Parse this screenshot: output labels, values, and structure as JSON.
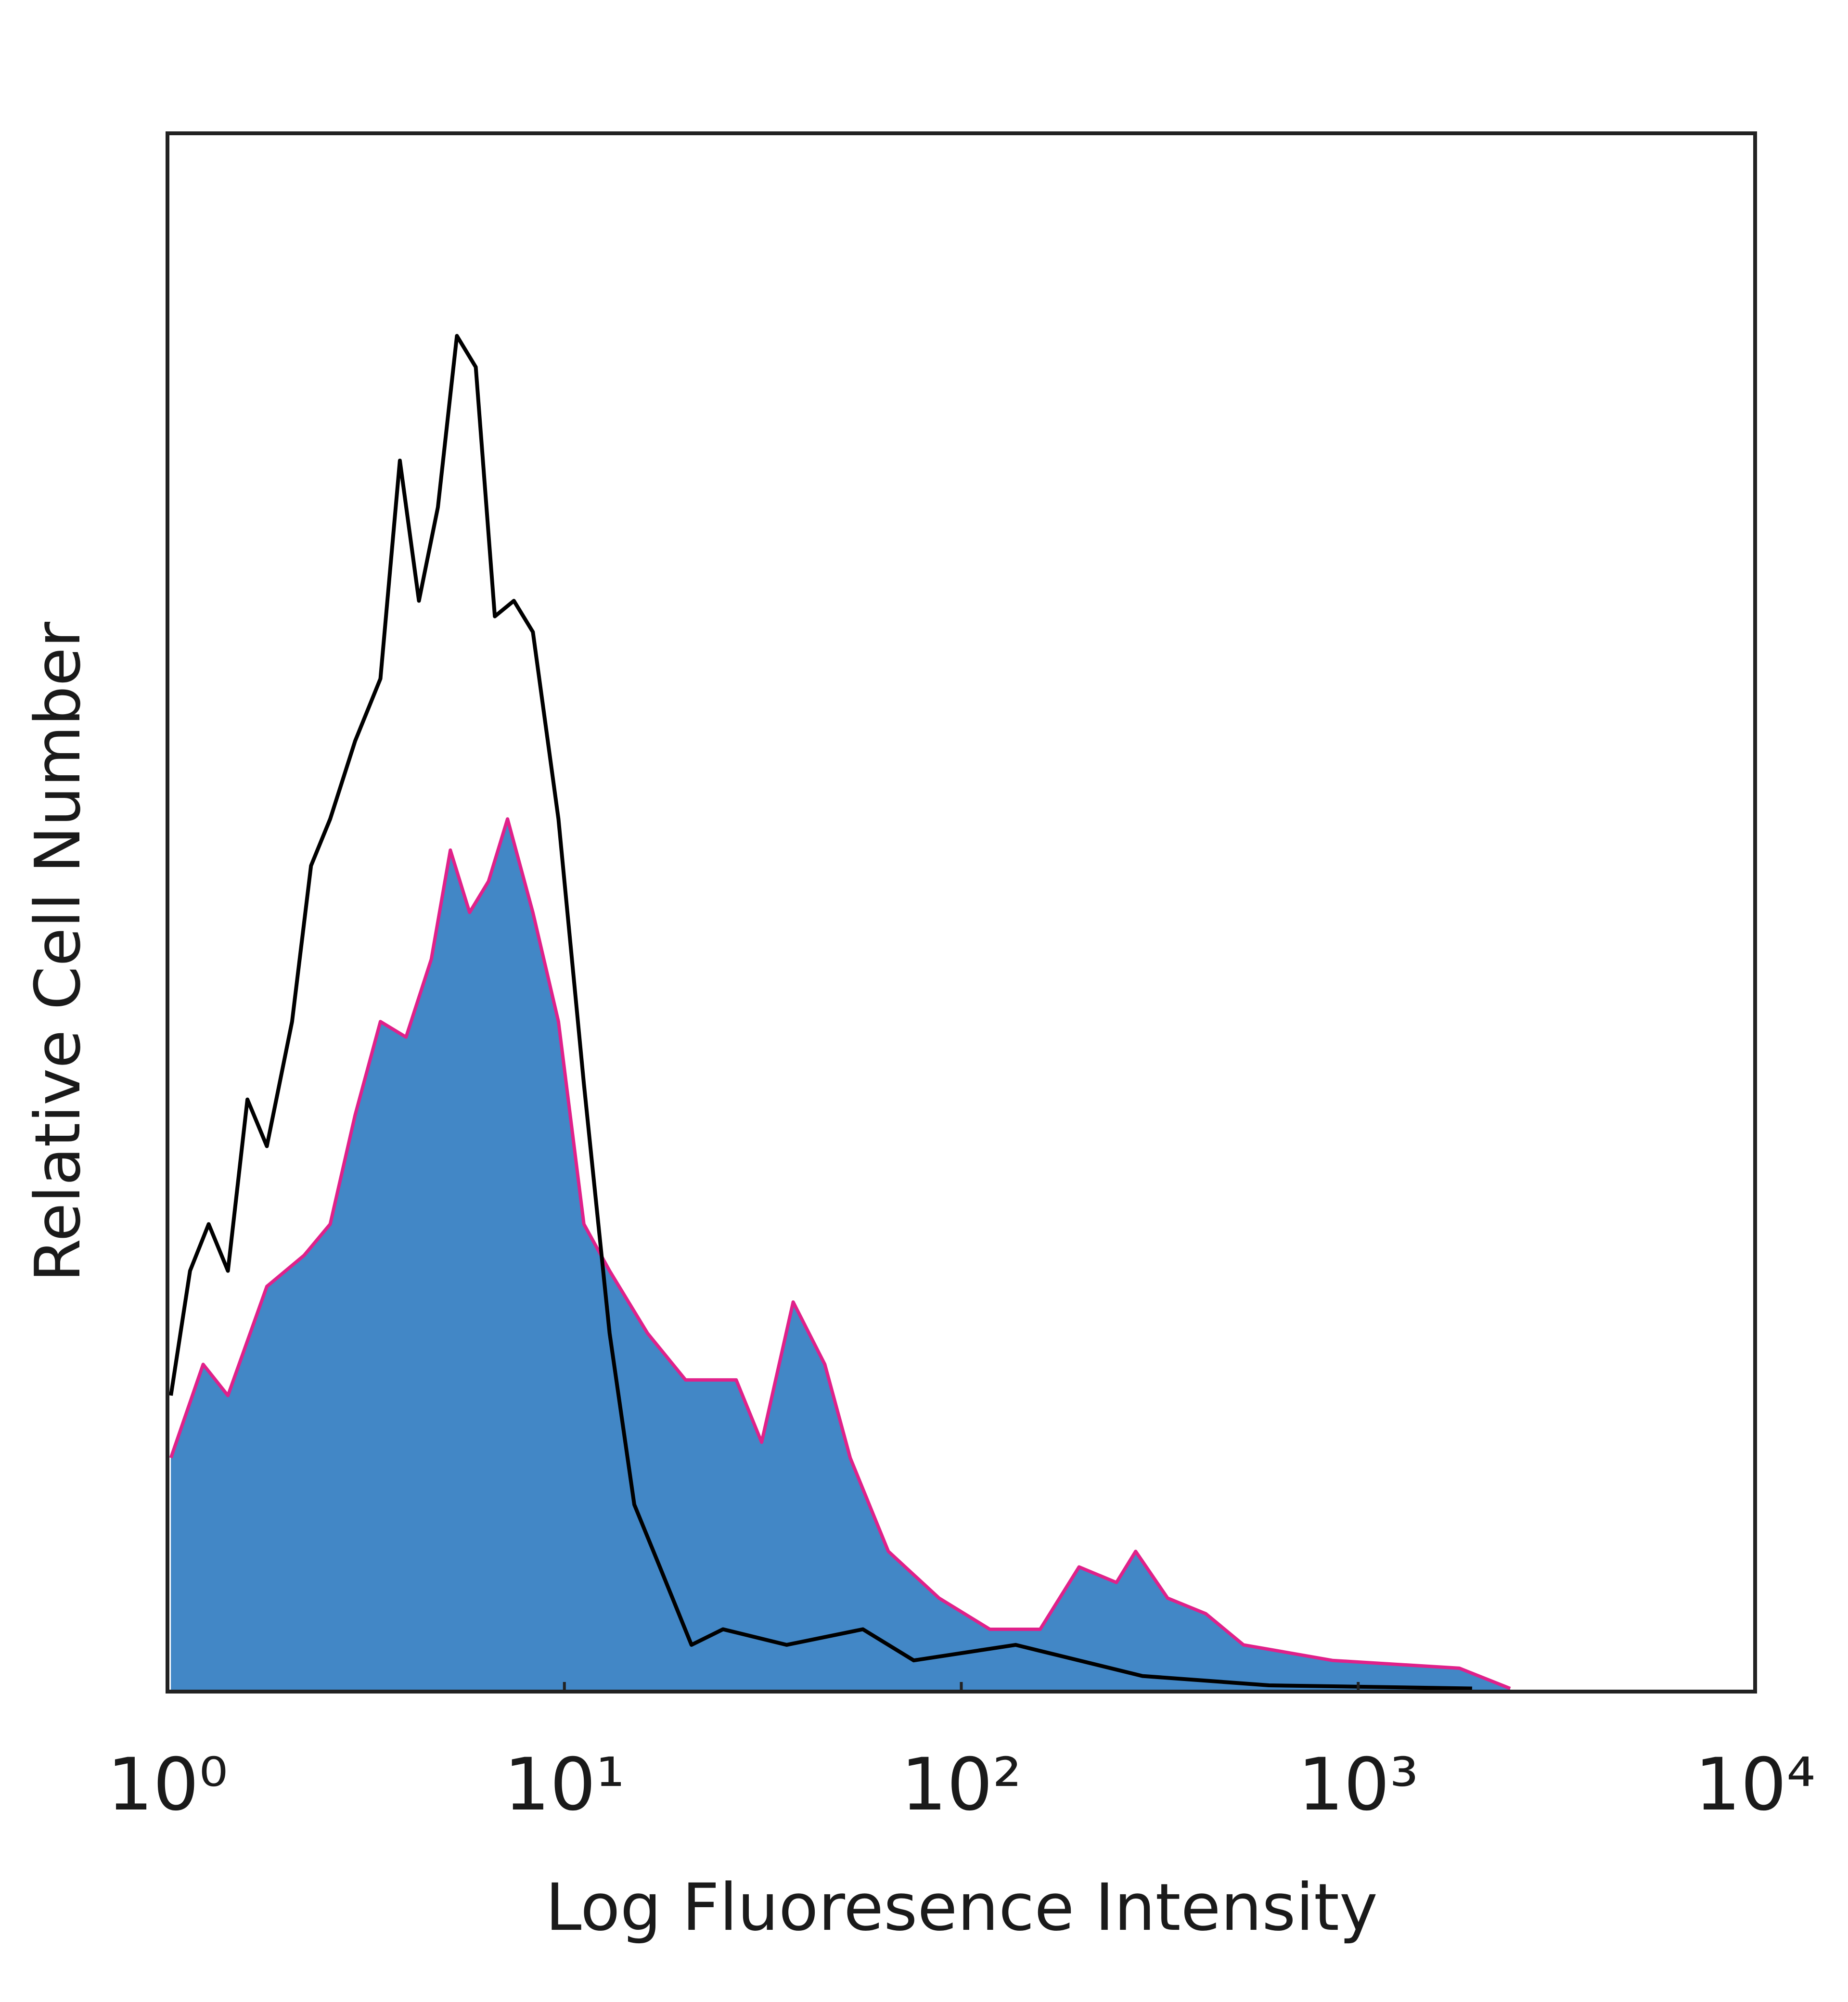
{
  "chart_data": {
    "type": "histogram-overlay",
    "xlabel": "Log Fluoresence Intensity",
    "ylabel": "Relative Cell Number",
    "xscale": "log",
    "xlim": [
      1,
      10000
    ],
    "xticks": [
      {
        "value": 1,
        "label": "10⁰"
      },
      {
        "value": 10,
        "label": "10¹"
      },
      {
        "value": 100,
        "label": "10²"
      },
      {
        "value": 1000,
        "label": "10³"
      },
      {
        "value": 10000,
        "label": "10⁴"
      }
    ],
    "ylim": [
      0,
      100
    ],
    "series": [
      {
        "color": "#e0218a",
        "fill": "#4287c6",
        "x": [
          1.02,
          1.23,
          1.42,
          1.78,
          2.21,
          2.57,
          2.97,
          3.44,
          3.99,
          4.62,
          5.16,
          5.77,
          6.44,
          7.19,
          8.33,
          9.66,
          11.2,
          13.0,
          16.2,
          20.2,
          27.1,
          31.4,
          37.7,
          45.3,
          52.5,
          65.5,
          87.9,
          118,
          158,
          198,
          246,
          275,
          331,
          413,
          514,
          861,
          1798,
          2415
        ],
        "values": [
          15,
          21,
          19,
          26,
          28,
          30,
          37,
          43,
          42,
          47,
          54,
          50,
          52,
          56,
          50,
          43,
          30,
          27,
          23,
          20,
          20,
          16,
          25,
          21,
          15,
          9,
          6,
          4,
          4,
          8,
          7,
          9,
          6,
          5,
          3,
          2,
          1.5,
          0.2
        ]
      },
      {
        "color": "#000000",
        "x": [
          1.02,
          1.14,
          1.27,
          1.42,
          1.59,
          1.78,
          2.06,
          2.3,
          2.57,
          2.97,
          3.44,
          3.85,
          4.3,
          4.8,
          5.36,
          5.98,
          6.68,
          7.46,
          8.33,
          9.66,
          11.2,
          13.0,
          15.0,
          17.4,
          20.9,
          25.1,
          36.3,
          56.5,
          75.9,
          137,
          198,
          286,
          596,
          1936
        ],
        "values": [
          19,
          27,
          30,
          27,
          38,
          35,
          43,
          53,
          56,
          61,
          65,
          79,
          70,
          76,
          87,
          85,
          69,
          70,
          68,
          56,
          39,
          23,
          12,
          8,
          3,
          4,
          3,
          4,
          2,
          3,
          2,
          1,
          0.4,
          0.2
        ]
      }
    ]
  }
}
